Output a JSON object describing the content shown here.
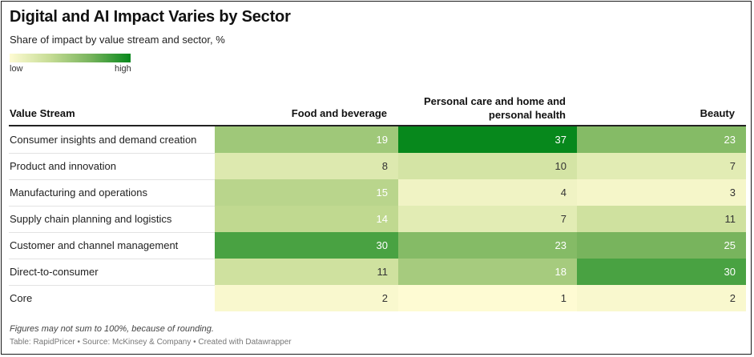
{
  "title": "Digital and AI Impact Varies by Sector",
  "subtitle": "Share of impact by value stream and sector, %",
  "legend": {
    "low_label": "low",
    "high_label": "high",
    "colors": [
      "#fefbd3",
      "#07881c"
    ]
  },
  "chart_data": {
    "type": "heatmap",
    "title": "Digital and AI Impact Varies by Sector",
    "subtitle": "Share of impact by value stream and sector, %",
    "row_header": "Value Stream",
    "columns": [
      "Food and beverage",
      "Personal care and home and personal health",
      "Beauty"
    ],
    "rows": [
      {
        "label": "Consumer insights and demand creation",
        "values": [
          19,
          37,
          23
        ]
      },
      {
        "label": "Product and innovation",
        "values": [
          8,
          10,
          7
        ]
      },
      {
        "label": "Manufacturing and operations",
        "values": [
          15,
          4,
          3
        ]
      },
      {
        "label": "Supply chain planning and logistics",
        "values": [
          14,
          7,
          11
        ]
      },
      {
        "label": "Customer and channel management",
        "values": [
          30,
          23,
          25
        ]
      },
      {
        "label": "Direct-to-consumer",
        "values": [
          11,
          18,
          30
        ]
      },
      {
        "label": "Core",
        "values": [
          2,
          1,
          2
        ]
      }
    ],
    "color_scale": {
      "min": 1,
      "max": 37
    }
  },
  "footer": {
    "note": "Figures may not sum to 100%, because of rounding.",
    "source": "Table: RapidPricer • Source: McKinsey & Company • Created with Datawrapper"
  }
}
